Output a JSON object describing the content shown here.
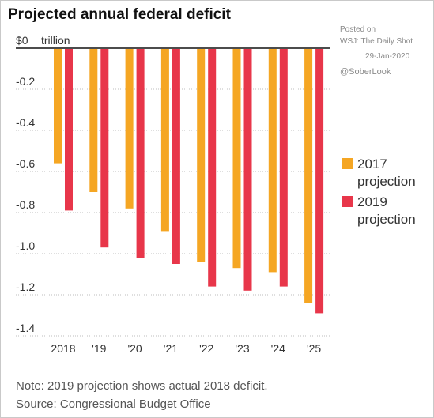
{
  "chart_data": {
    "type": "bar",
    "title": "Projected annual federal deficit",
    "unit_label": "trillion",
    "categories": [
      "2018",
      "'19",
      "'20",
      "'21",
      "'22",
      "'23",
      "'24",
      "'25"
    ],
    "series": [
      {
        "name": "2017 projection",
        "color": "#f5a623",
        "values": [
          -0.56,
          -0.7,
          -0.78,
          -0.89,
          -1.04,
          -1.07,
          -1.09,
          -1.24
        ]
      },
      {
        "name": "2019 projection",
        "color": "#e8364a",
        "values": [
          -0.79,
          -0.97,
          -1.02,
          -1.05,
          -1.16,
          -1.18,
          -1.16,
          -1.29
        ]
      }
    ],
    "ylim": [
      -1.4,
      0
    ],
    "yticks": [
      {
        "value": 0,
        "label": "$0"
      },
      {
        "value": -0.2,
        "label": "-0.2"
      },
      {
        "value": -0.4,
        "label": "-0.4"
      },
      {
        "value": -0.6,
        "label": "-0.6"
      },
      {
        "value": -0.8,
        "label": "-0.8"
      },
      {
        "value": -1.0,
        "label": "-1.0"
      },
      {
        "value": -1.2,
        "label": "-1.2"
      },
      {
        "value": -1.4,
        "label": "-1.4"
      }
    ],
    "grid": true,
    "legend_position": "right",
    "notes": [
      "Note: 2019 projection shows actual 2018 deficit.",
      "Source: Congressional Budget Office"
    ]
  },
  "watermark": {
    "posted_on": "Posted on",
    "source": "WSJ: The Daily Shot",
    "date": "29-Jan-2020",
    "handle": "@SoberLook"
  }
}
